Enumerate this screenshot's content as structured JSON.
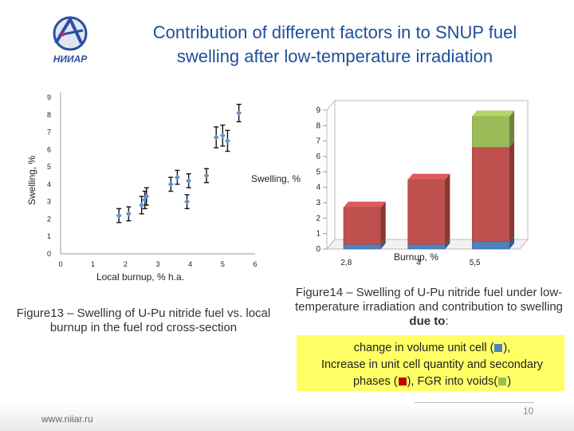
{
  "header": {
    "title_line1": "Contribution of different factors in to SNUP fuel",
    "title_line2": "swelling after low-temperature irradiation",
    "logo_text": "НИИАР"
  },
  "chart_data": [
    {
      "type": "scatter",
      "title": "",
      "xlabel": "Local burnup, % h.a.",
      "ylabel": "Swelling, %",
      "xlim": [
        0,
        6
      ],
      "ylim": [
        0,
        9
      ],
      "x_ticks": [
        "0",
        "1",
        "2",
        "3",
        "4",
        "5",
        "6"
      ],
      "y_ticks": [
        "0",
        "1",
        "2",
        "3",
        "4",
        "5",
        "6",
        "7",
        "8",
        "9"
      ],
      "grid": false,
      "points": [
        {
          "x": 1.8,
          "y": 2.2,
          "err": 0.4
        },
        {
          "x": 2.1,
          "y": 2.3,
          "err": 0.4
        },
        {
          "x": 2.5,
          "y": 2.8,
          "err": 0.5
        },
        {
          "x": 2.6,
          "y": 3.1,
          "err": 0.5
        },
        {
          "x": 2.65,
          "y": 3.3,
          "err": 0.5
        },
        {
          "x": 3.4,
          "y": 4.0,
          "err": 0.4
        },
        {
          "x": 3.6,
          "y": 4.4,
          "err": 0.4
        },
        {
          "x": 3.9,
          "y": 3.0,
          "err": 0.4
        },
        {
          "x": 3.95,
          "y": 4.2,
          "err": 0.4
        },
        {
          "x": 4.5,
          "y": 4.5,
          "err": 0.4
        },
        {
          "x": 4.8,
          "y": 6.7,
          "err": 0.6
        },
        {
          "x": 5.0,
          "y": 6.8,
          "err": 0.6
        },
        {
          "x": 5.15,
          "y": 6.5,
          "err": 0.6
        },
        {
          "x": 5.5,
          "y": 8.1,
          "err": 0.5
        }
      ]
    },
    {
      "type": "bar",
      "stacked": true,
      "three_d": true,
      "title": "",
      "xlabel": "Burnup, %",
      "ylabel": "Swelling, %",
      "categories": [
        "2,8",
        "4",
        "5,5"
      ],
      "ylim": [
        0,
        9
      ],
      "y_ticks": [
        "0",
        "1",
        "2",
        "3",
        "4",
        "5",
        "6",
        "7",
        "8",
        "9"
      ],
      "grid": false,
      "series": [
        {
          "name": "change in volume unit cell",
          "color": "#4f81bd",
          "values": [
            0.3,
            0.3,
            0.5
          ]
        },
        {
          "name": "Increase in unit cell quantity and secondary phases",
          "color": "#c0504d",
          "values": [
            2.4,
            4.2,
            6.1
          ]
        },
        {
          "name": "FGR into voids",
          "color": "#9bbb59",
          "values": [
            0.0,
            0.0,
            2.0
          ]
        }
      ]
    }
  ],
  "captions": {
    "fig13": "Figure13 – Swelling of U-Pu nitride fuel vs. local burnup in the fuel rod cross-section",
    "fig14_a": "Figure14 – Swelling of U-Pu nitride fuel under low-temperature irradiation and contribution to swelling ",
    "fig14_bold": "due to",
    "fig14_end": ":"
  },
  "legend": {
    "line1_a": "change in volume unit cell (",
    "line1_b": "),",
    "line2": "Increase in unit cell quantity and secondary",
    "line3_a": "phases (",
    "line3_b": "), FGR into voids(",
    "line3_c": ")"
  },
  "footer": {
    "url": "www.niiar.ru",
    "page": "10"
  },
  "colors": {
    "title": "#1f4e9a",
    "legend_bg": "#ffff66"
  }
}
